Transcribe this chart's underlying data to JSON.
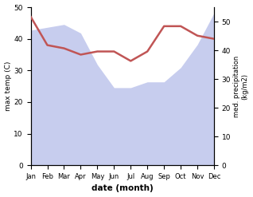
{
  "months": [
    "Jan",
    "Feb",
    "Mar",
    "Apr",
    "May",
    "Jun",
    "Jul",
    "Aug",
    "Sep",
    "Oct",
    "Nov",
    "Dec"
  ],
  "month_indices": [
    0,
    1,
    2,
    3,
    4,
    5,
    6,
    7,
    8,
    9,
    10,
    11
  ],
  "precipitation": [
    47,
    48,
    49,
    46,
    35,
    27,
    27,
    29,
    29,
    34,
    42,
    53
  ],
  "temperature": [
    47,
    38,
    37,
    35,
    36,
    36,
    33,
    36,
    44,
    44,
    41,
    40
  ],
  "precip_color": "#b0b8e8",
  "temp_color": "#c05555",
  "temp_ylim": [
    0,
    50
  ],
  "precip_ylim": [
    0,
    55
  ],
  "precip_yticks": [
    0,
    10,
    20,
    30,
    40,
    50
  ],
  "temp_yticks": [
    0,
    10,
    20,
    30,
    40,
    50
  ],
  "xlabel": "date (month)",
  "ylabel_left": "max temp (C)",
  "ylabel_right": "med. precipitation\n(kg/m2)",
  "bg_color": "#ffffff",
  "fig_width": 3.18,
  "fig_height": 2.47,
  "dpi": 100
}
